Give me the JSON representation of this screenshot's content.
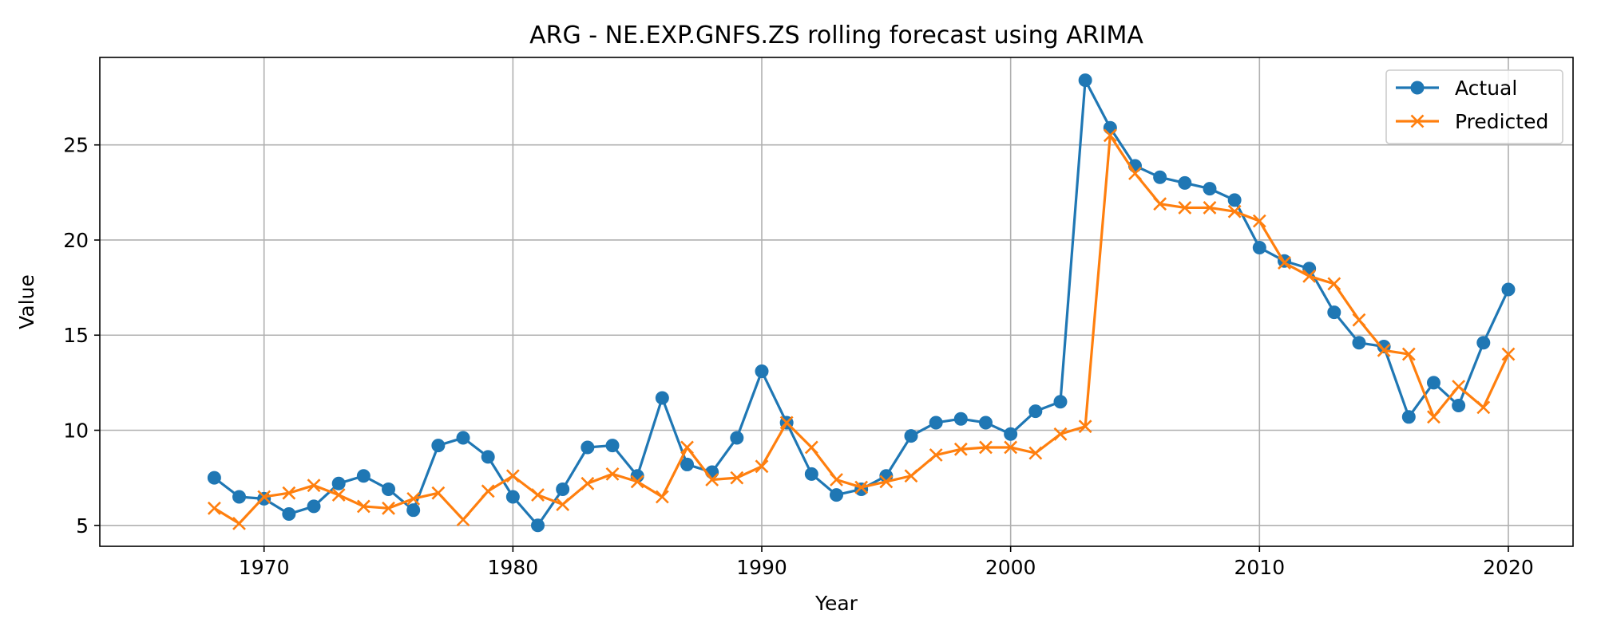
{
  "chart_data": {
    "type": "line",
    "title": "ARG - NE.EXP.GNFS.ZS rolling forecast using ARIMA",
    "xlabel": "Year",
    "ylabel": "Value",
    "xlim": [
      1963.4,
      2022.6
    ],
    "ylim": [
      3.9,
      29.6
    ],
    "xticks": [
      1970,
      1980,
      1990,
      2000,
      2010,
      2020
    ],
    "yticks": [
      5,
      10,
      15,
      20,
      25
    ],
    "grid": true,
    "legend_position": "top-right",
    "x": [
      1968,
      1969,
      1970,
      1971,
      1972,
      1973,
      1974,
      1975,
      1976,
      1977,
      1978,
      1979,
      1980,
      1981,
      1982,
      1983,
      1984,
      1985,
      1986,
      1987,
      1988,
      1989,
      1990,
      1991,
      1992,
      1993,
      1994,
      1995,
      1996,
      1997,
      1998,
      1999,
      2000,
      2001,
      2002,
      2003,
      2004,
      2005,
      2006,
      2007,
      2008,
      2009,
      2010,
      2011,
      2012,
      2013,
      2014,
      2015,
      2016,
      2017,
      2018,
      2019,
      2020
    ],
    "series": [
      {
        "name": "Actual",
        "color": "#1f77b4",
        "marker": "circle",
        "values": [
          7.5,
          6.5,
          6.4,
          5.6,
          6.0,
          7.2,
          7.6,
          6.9,
          5.8,
          9.2,
          9.6,
          8.6,
          6.5,
          5.0,
          6.9,
          9.1,
          9.2,
          7.6,
          11.7,
          8.2,
          7.8,
          9.6,
          13.1,
          10.4,
          7.7,
          6.6,
          6.9,
          7.6,
          9.7,
          10.4,
          10.6,
          10.4,
          9.8,
          11.0,
          11.5,
          28.4,
          25.9,
          23.9,
          23.3,
          23.0,
          22.7,
          22.1,
          19.6,
          18.9,
          18.5,
          16.2,
          14.6,
          14.4,
          10.7,
          12.5,
          11.3,
          14.6,
          17.4
        ]
      },
      {
        "name": "Predicted",
        "color": "#ff7f0e",
        "marker": "x",
        "values": [
          5.9,
          5.1,
          6.5,
          6.7,
          7.1,
          6.6,
          6.0,
          5.9,
          6.4,
          6.7,
          5.3,
          6.8,
          7.6,
          6.6,
          6.1,
          7.2,
          7.7,
          7.3,
          6.5,
          9.1,
          7.4,
          7.5,
          8.1,
          10.4,
          9.1,
          7.4,
          7.0,
          7.3,
          7.6,
          8.7,
          9.0,
          9.1,
          9.1,
          8.8,
          9.8,
          10.2,
          25.5,
          23.5,
          21.9,
          21.7,
          21.7,
          21.5,
          21.0,
          18.8,
          18.1,
          17.7,
          15.8,
          14.2,
          14.0,
          10.7,
          12.3,
          11.2,
          14.0
        ]
      }
    ]
  }
}
